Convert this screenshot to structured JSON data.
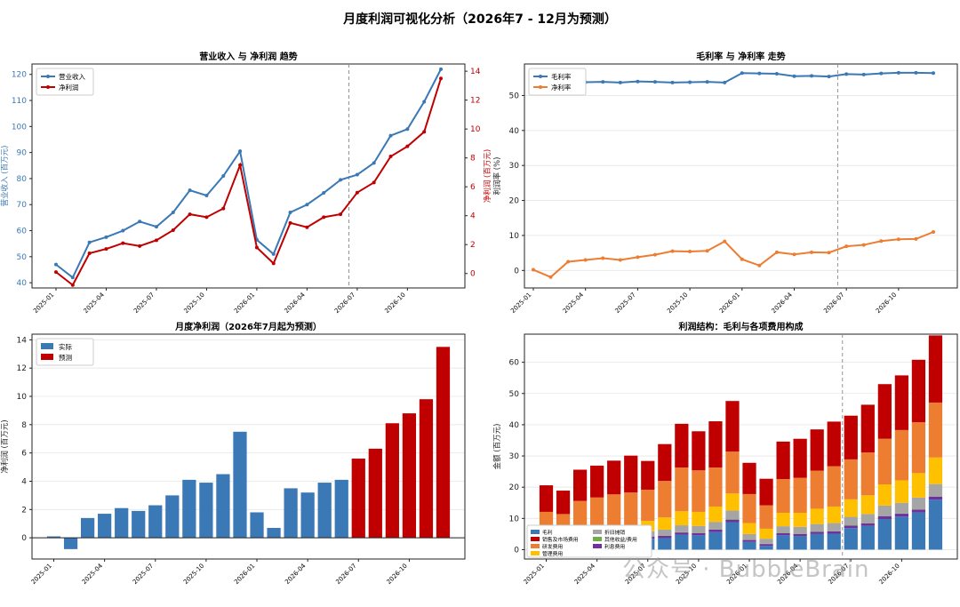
{
  "figure_title": "月度利润可视化分析（2026年7 - 12月为预测）",
  "watermark": "公众号 · BubbleBrain",
  "chart_data": [
    {
      "type": "line",
      "title": "营业收入 与 净利润 趋势",
      "xlabel": "",
      "ylabel": "营业收入 (百万元)",
      "ylabel_right": "净利润 (百万元)",
      "x": [
        "2025-01",
        "2025-02",
        "2025-03",
        "2025-04",
        "2025-05",
        "2025-06",
        "2025-07",
        "2025-08",
        "2025-09",
        "2025-10",
        "2025-11",
        "2025-12",
        "2026-01",
        "2026-02",
        "2026-03",
        "2026-04",
        "2026-05",
        "2026-06",
        "2026-07",
        "2026-08",
        "2026-09",
        "2026-10",
        "2026-11",
        "2026-12"
      ],
      "xticks": [
        "2025-01",
        "2025-04",
        "2025-07",
        "2025-10",
        "2026-01",
        "2026-04",
        "2026-07",
        "2026-10"
      ],
      "ylim": [
        38,
        124
      ],
      "yticks": [
        40,
        50,
        60,
        70,
        80,
        90,
        100,
        110,
        120
      ],
      "ylim_right": [
        -1,
        14.5
      ],
      "yticks_right": [
        0,
        2,
        4,
        6,
        8,
        10,
        12,
        14
      ],
      "forecast_start": "2026-06-15",
      "legend": "top-left",
      "series": [
        {
          "name": "营业收入",
          "axis": "left",
          "color": "#3a78b6",
          "values": [
            47,
            42,
            55.5,
            57.5,
            60,
            63.5,
            61.5,
            67,
            75.5,
            73.5,
            81,
            90.5,
            56.5,
            51,
            67,
            70,
            74.5,
            79.5,
            81.5,
            86,
            96.5,
            99,
            109.5,
            122
          ]
        },
        {
          "name": "净利润",
          "axis": "right",
          "color": "#c00000",
          "values": [
            0.1,
            -0.8,
            1.4,
            1.7,
            2.1,
            1.9,
            2.3,
            3.0,
            4.1,
            3.9,
            4.5,
            7.5,
            1.8,
            0.7,
            3.5,
            3.2,
            3.9,
            4.1,
            5.6,
            6.3,
            8.1,
            8.8,
            9.8,
            13.5
          ]
        }
      ]
    },
    {
      "type": "line",
      "title": "毛利率 与 净利率 走势",
      "ylabel": "利润率 (%)",
      "ylim": [
        -5,
        59
      ],
      "yticks": [
        0,
        10,
        20,
        30,
        40,
        50
      ],
      "forecast_start": "2026-06-15",
      "legend": "top-left",
      "series": [
        {
          "name": "毛利率",
          "color": "#3a78b6",
          "values": [
            53.5,
            53.7,
            53.8,
            53.8,
            53.9,
            53.7,
            54,
            53.9,
            53.7,
            53.8,
            53.9,
            53.7,
            56.4,
            56.3,
            56.2,
            55.5,
            55.6,
            55.4,
            56.1,
            56,
            56.3,
            56.5,
            56.5,
            56.4
          ]
        },
        {
          "name": "净利率",
          "color": "#ed7d31",
          "values": [
            0.2,
            -1.9,
            2.5,
            3,
            3.5,
            3,
            3.8,
            4.5,
            5.5,
            5.4,
            5.6,
            8.3,
            3.2,
            1.4,
            5.2,
            4.6,
            5.2,
            5.1,
            6.9,
            7.3,
            8.4,
            8.9,
            9,
            11
          ]
        }
      ]
    },
    {
      "type": "bar",
      "title": "月度净利润（2026年7月起为预测）",
      "ylabel": "净利润 (百万元)",
      "ylim": [
        -1.5,
        14.4
      ],
      "yticks": [
        0,
        2,
        4,
        6,
        8,
        10,
        12,
        14
      ],
      "legend": "top-left",
      "series": [
        {
          "name": "实际",
          "color": "#3a78b6"
        },
        {
          "name": "预测",
          "color": "#c00000"
        }
      ],
      "values": [
        0.1,
        -0.8,
        1.4,
        1.7,
        2.1,
        1.9,
        2.3,
        3.0,
        4.1,
        3.9,
        4.5,
        7.5,
        1.8,
        0.7,
        3.5,
        3.2,
        3.9,
        4.1,
        5.6,
        6.3,
        8.1,
        8.8,
        9.8,
        13.5
      ],
      "forecast_from_index": 18
    },
    {
      "type": "bar",
      "stacked": true,
      "title": "利润结构：毛利与各项费用构成",
      "ylabel": "金额 (百万元)",
      "ylim": [
        -3,
        69
      ],
      "yticks": [
        0,
        10,
        20,
        30,
        40,
        50,
        60
      ],
      "forecast_start": "2026-06-15",
      "legend": "bottom-left",
      "series": [
        {
          "name": "毛利",
          "color": "#3a78b6",
          "values": [
            0.1,
            -0.8,
            1.4,
            1.7,
            2.1,
            1.9,
            3.5,
            3.7,
            4.8,
            4.6,
            5.6,
            8.8,
            2.5,
            1.2,
            4.6,
            4.3,
            5,
            5.1,
            6.9,
            7.6,
            9.8,
            10.6,
            11.9,
            16
          ]
        },
        {
          "name": "销售及市场费用",
          "color": "#c00000",
          "values": [
            8.5,
            7.5,
            10,
            10.2,
            10.8,
            11.8,
            9.2,
            11.8,
            14,
            12.5,
            14.8,
            16.2,
            10,
            8.5,
            12,
            12.5,
            13.2,
            14.3,
            14,
            15.3,
            17.5,
            17.5,
            20,
            21.5
          ]
        },
        {
          "name": "研发费用",
          "color": "#ed7d31",
          "values": [
            7.8,
            7.5,
            9.2,
            9.8,
            10.1,
            10.5,
            10,
            11.7,
            14,
            13.3,
            12.5,
            13.4,
            9.3,
            7.5,
            10.8,
            11.2,
            12.2,
            12.9,
            12.8,
            13.7,
            14.6,
            16.1,
            16.3,
            17.6
          ]
        },
        {
          "name": "管理费用",
          "color": "#ffc000",
          "values": [
            2.4,
            2.2,
            2.9,
            3,
            3.2,
            3.5,
            3.3,
            3.9,
            4.5,
            4.5,
            4.9,
            5.5,
            3.5,
            3.2,
            4.3,
            4.5,
            4.9,
            5.3,
            5.6,
            6,
            6.8,
            7.2,
            7.8,
            8.5
          ]
        },
        {
          "name": "折旧摊销",
          "color": "#a5a5a5",
          "values": [
            1.2,
            1.1,
            1.4,
            1.5,
            1.6,
            1.7,
            1.6,
            1.9,
            2.2,
            2.2,
            2.4,
            2.7,
            1.8,
            1.6,
            2.1,
            2.2,
            2.4,
            2.5,
            2.7,
            2.9,
            3.3,
            3.4,
            3.8,
            3.9
          ]
        },
        {
          "name": "其他收益/费用",
          "color": "#70ad47",
          "values": [
            0.1,
            0.1,
            0.1,
            0.1,
            0.1,
            0.1,
            0.1,
            0.1,
            0.1,
            0.1,
            0.1,
            0.2,
            0.1,
            0.1,
            0.1,
            0.1,
            0.1,
            0.1,
            0.1,
            0.1,
            0.1,
            0.1,
            0.1,
            0.1
          ]
        },
        {
          "name": "利息费用",
          "color": "#7030a0",
          "values": [
            0.5,
            0.5,
            0.6,
            0.6,
            0.6,
            0.6,
            0.7,
            0.7,
            0.7,
            0.7,
            0.8,
            0.8,
            0.6,
            0.6,
            0.7,
            0.7,
            0.7,
            0.8,
            0.8,
            0.8,
            0.9,
            0.9,
            0.9,
            1
          ]
        }
      ]
    }
  ]
}
